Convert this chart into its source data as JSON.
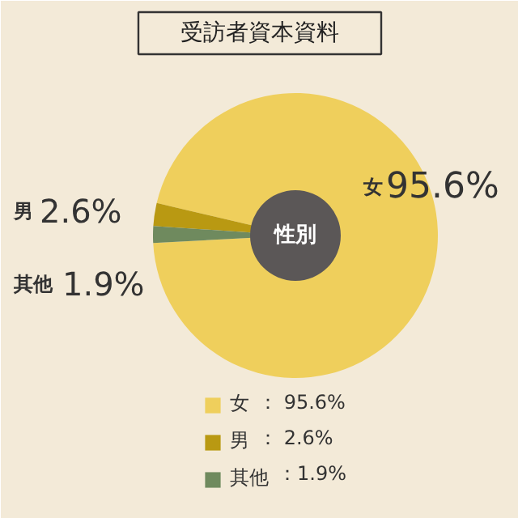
{
  "chart_data": {
    "type": "donut",
    "title": "受訪者資本資料",
    "categories": [
      "女",
      "男",
      "其他"
    ],
    "values": [
      95.6,
      2.6,
      1.9
    ],
    "colors": [
      "#efcf5c",
      "#b99912",
      "#6f8a5e"
    ],
    "data_labels": true,
    "value_labels": [
      "95.6%",
      "2.6%",
      "1.9%"
    ],
    "legend": "bottom",
    "annotations": [
      "性別",
      "：  95.6%",
      "：    2.6%",
      "：1.9%"
    ]
  }
}
